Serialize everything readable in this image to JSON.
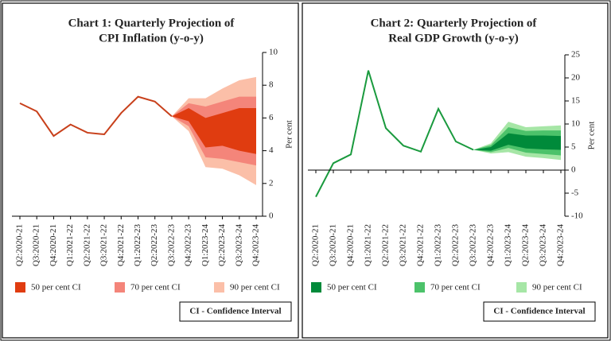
{
  "chart_data": [
    {
      "type": "fan",
      "title": [
        "Chart 1: Quarterly Projection of",
        "CPI Inflation (y-o-y)"
      ],
      "y_label": "Per cent",
      "note": "CI - Confidence Interval",
      "categories": [
        "Q2:2020-21",
        "Q3:2020-21",
        "Q4:2020-21",
        "Q1:2021-22",
        "Q2:2021-22",
        "Q3:2021-22",
        "Q4:2021-22",
        "Q1:2022-23",
        "Q2:2022-23",
        "Q3:2022-23",
        "Q4:2022-23",
        "Q1:2023-24",
        "Q2:2023-24",
        "Q3:2023-24",
        "Q4:2023-24"
      ],
      "ylim": [
        0,
        10
      ],
      "yticks": [
        0,
        2,
        4,
        6,
        8,
        10
      ],
      "line": {
        "color": "#c8401b",
        "values": [
          6.9,
          6.4,
          4.9,
          5.6,
          5.1,
          5.0,
          6.3,
          7.3,
          7.0,
          6.1,
          null,
          null,
          null,
          null,
          null
        ]
      },
      "series": [
        {
          "name": "50 per cent CI",
          "color": "#e03c10",
          "lower": [
            null,
            null,
            null,
            null,
            null,
            null,
            null,
            null,
            null,
            6.1,
            5.8,
            4.2,
            4.3,
            4.0,
            3.8
          ],
          "upper": [
            null,
            null,
            null,
            null,
            null,
            null,
            null,
            null,
            null,
            6.1,
            6.6,
            6.0,
            6.3,
            6.6,
            6.6
          ]
        },
        {
          "name": "70 per cent CI",
          "color": "#f4857a",
          "lower": [
            null,
            null,
            null,
            null,
            null,
            null,
            null,
            null,
            null,
            6.1,
            5.5,
            3.6,
            3.5,
            3.3,
            3.1
          ],
          "upper": [
            null,
            null,
            null,
            null,
            null,
            null,
            null,
            null,
            null,
            6.1,
            6.9,
            6.7,
            7.0,
            7.3,
            7.3
          ]
        },
        {
          "name": "90 per cent CI",
          "color": "#fbbfa8",
          "lower": [
            null,
            null,
            null,
            null,
            null,
            null,
            null,
            null,
            null,
            6.1,
            5.2,
            3.0,
            2.9,
            2.5,
            1.9
          ],
          "upper": [
            null,
            null,
            null,
            null,
            null,
            null,
            null,
            null,
            null,
            6.1,
            7.2,
            7.2,
            7.8,
            8.3,
            8.5
          ]
        }
      ]
    },
    {
      "type": "fan",
      "title": [
        "Chart 2: Quarterly Projection of",
        "Real GDP Growth (y-o-y)"
      ],
      "y_label": "Per cent",
      "note": "CI - Confidence Interval",
      "categories": [
        "Q2:2020-21",
        "Q3:2020-21",
        "Q4:2020-21",
        "Q1:2021-22",
        "Q2:2021-22",
        "Q3:2021-22",
        "Q4:2021-22",
        "Q1:2022-23",
        "Q2:2022-23",
        "Q3:2022-23",
        "Q4:2022-23",
        "Q1:2023-24",
        "Q2:2023-24",
        "Q3:2023-24",
        "Q4:2023-24"
      ],
      "ylim": [
        -10,
        25
      ],
      "yticks": [
        -10,
        -5,
        0,
        5,
        10,
        15,
        20,
        25
      ],
      "line": {
        "color": "#1a9a3e",
        "values": [
          -5.8,
          1.5,
          3.4,
          21.6,
          9.1,
          5.3,
          4.0,
          13.3,
          6.2,
          4.4,
          null,
          null,
          null,
          null,
          null
        ]
      },
      "series": [
        {
          "name": "50 per cent CI",
          "color": "#008a3a",
          "lower": [
            null,
            null,
            null,
            null,
            null,
            null,
            null,
            null,
            null,
            4.4,
            4.2,
            5.5,
            4.7,
            4.5,
            4.4
          ],
          "upper": [
            null,
            null,
            null,
            null,
            null,
            null,
            null,
            null,
            null,
            4.4,
            5.0,
            8.0,
            7.5,
            7.5,
            7.4
          ]
        },
        {
          "name": "70 per cent CI",
          "color": "#4cc26a",
          "lower": [
            null,
            null,
            null,
            null,
            null,
            null,
            null,
            null,
            null,
            4.4,
            3.9,
            4.8,
            3.8,
            3.5,
            3.2
          ],
          "upper": [
            null,
            null,
            null,
            null,
            null,
            null,
            null,
            null,
            null,
            4.4,
            5.4,
            9.3,
            8.5,
            8.6,
            8.6
          ]
        },
        {
          "name": "90 per cent CI",
          "color": "#a6e6a6",
          "lower": [
            null,
            null,
            null,
            null,
            null,
            null,
            null,
            null,
            null,
            4.4,
            3.6,
            3.9,
            2.9,
            2.6,
            2.2
          ],
          "upper": [
            null,
            null,
            null,
            null,
            null,
            null,
            null,
            null,
            null,
            4.4,
            5.8,
            10.5,
            9.3,
            9.5,
            9.7
          ]
        }
      ]
    }
  ]
}
